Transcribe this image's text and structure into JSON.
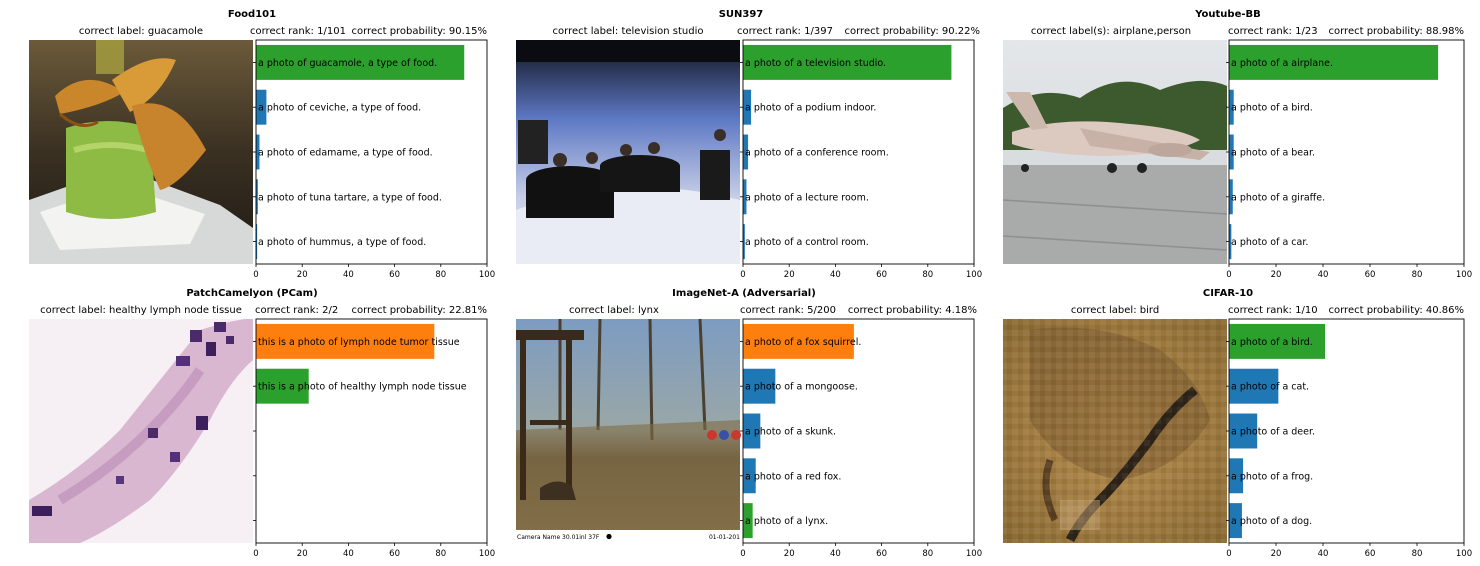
{
  "chart_data": [
    {
      "type": "bar",
      "orientation": "horizontal",
      "title": "Food101",
      "caption_left": "correct label: guacamole",
      "caption_mid": "correct rank: 1/101",
      "caption_right": "correct probability: 90.15%",
      "categories": [
        "a photo of guacamole, a type of food.",
        "a photo of ceviche, a type of food.",
        "a photo of edamame, a type of food.",
        "a photo of tuna tartare, a type of food.",
        "a photo of hummus, a type of food."
      ],
      "values": [
        90.15,
        4.5,
        1.5,
        0.8,
        0.5
      ],
      "colors": [
        "#2ca02c",
        "#1f77b4",
        "#1f77b4",
        "#1f77b4",
        "#1f77b4"
      ],
      "xlim": [
        0,
        100
      ],
      "xticks": [
        "0",
        "20",
        "40",
        "60",
        "80",
        "100"
      ],
      "image_description": "guacamole with fried plantain chips on a white plate"
    },
    {
      "type": "bar",
      "orientation": "horizontal",
      "title": "SUN397",
      "caption_left": "correct label: television studio",
      "caption_mid": "correct rank: 1/397",
      "caption_right": "correct probability: 90.22%",
      "categories": [
        "a photo of a television studio.",
        "a photo of a podium indoor.",
        "a photo of a conference room.",
        "a photo of a lecture room.",
        "a photo of a control room."
      ],
      "values": [
        90.22,
        3.5,
        2.2,
        1.5,
        0.8
      ],
      "colors": [
        "#2ca02c",
        "#1f77b4",
        "#1f77b4",
        "#1f77b4",
        "#1f77b4"
      ],
      "xlim": [
        0,
        100
      ],
      "xticks": [
        "0",
        "20",
        "40",
        "60",
        "80",
        "100"
      ],
      "image_description": "television studio with panel desks and blue backdrop"
    },
    {
      "type": "bar",
      "orientation": "horizontal",
      "title": "Youtube-BB",
      "caption_left": "correct label(s): airplane,person",
      "caption_mid": "correct rank: 1/23",
      "caption_right": "correct probability: 88.98%",
      "categories": [
        "a photo of a airplane.",
        "a photo of a bird.",
        "a photo of a bear.",
        "a photo of a giraffe.",
        "a photo of a car."
      ],
      "values": [
        88.98,
        2.0,
        2.0,
        1.6,
        1.0
      ],
      "colors": [
        "#2ca02c",
        "#1f77b4",
        "#1f77b4",
        "#1f77b4",
        "#1f77b4"
      ],
      "xlim": [
        0,
        100
      ],
      "xticks": [
        "0",
        "20",
        "40",
        "60",
        "80",
        "100"
      ],
      "image_description": "large jet aircraft on a runway"
    },
    {
      "type": "bar",
      "orientation": "horizontal",
      "title": "PatchCamelyon (PCam)",
      "caption_left": "correct label: healthy lymph node tissue",
      "caption_mid": "correct rank: 2/2",
      "caption_right": "correct probability: 22.81%",
      "categories": [
        "this is a photo of lymph node tumor tissue",
        "this is a photo of healthy lymph node tissue"
      ],
      "values": [
        77.19,
        22.81
      ],
      "colors": [
        "#ff7f0e",
        "#2ca02c"
      ],
      "xlim": [
        0,
        100
      ],
      "xticks": [
        "0",
        "20",
        "40",
        "60",
        "80",
        "100"
      ],
      "image_description": "pink and purple histology tissue patch"
    },
    {
      "type": "bar",
      "orientation": "horizontal",
      "title": "ImageNet-A (Adversarial)",
      "caption_left": "correct label: lynx",
      "caption_mid": "correct rank: 5/200",
      "caption_right": "correct probability: 4.18%",
      "categories": [
        "a photo of a fox squirrel.",
        "a photo of a mongoose.",
        "a photo of a skunk.",
        "a photo of a red fox.",
        "a photo of a lynx."
      ],
      "values": [
        48,
        14,
        7.5,
        5.5,
        4.18
      ],
      "colors": [
        "#ff7f0e",
        "#1f77b4",
        "#1f77b4",
        "#1f77b4",
        "#2ca02c"
      ],
      "xlim": [
        0,
        100
      ],
      "xticks": [
        "0",
        "20",
        "40",
        "60",
        "80",
        "100"
      ],
      "image_description": "trail camera photo of a yard with wooden structure and bare trees",
      "image_footer_left": "Camera Name 30.01inl 37F",
      "image_footer_right": "01-01-201"
    },
    {
      "type": "bar",
      "orientation": "horizontal",
      "title": "CIFAR-10",
      "caption_left": "correct label: bird",
      "caption_mid": "correct rank: 1/10",
      "caption_right": "correct probability: 40.86%",
      "categories": [
        "a photo of a bird.",
        "a photo of a cat.",
        "a photo of a deer.",
        "a photo of a frog.",
        "a photo of a dog."
      ],
      "values": [
        40.86,
        21,
        12,
        6,
        5.5
      ],
      "colors": [
        "#2ca02c",
        "#1f77b4",
        "#1f77b4",
        "#1f77b4",
        "#1f77b4"
      ],
      "xlim": [
        0,
        100
      ],
      "xticks": [
        "0",
        "20",
        "40",
        "60",
        "80",
        "100"
      ],
      "image_description": "low resolution pixelated image of a bird"
    }
  ]
}
